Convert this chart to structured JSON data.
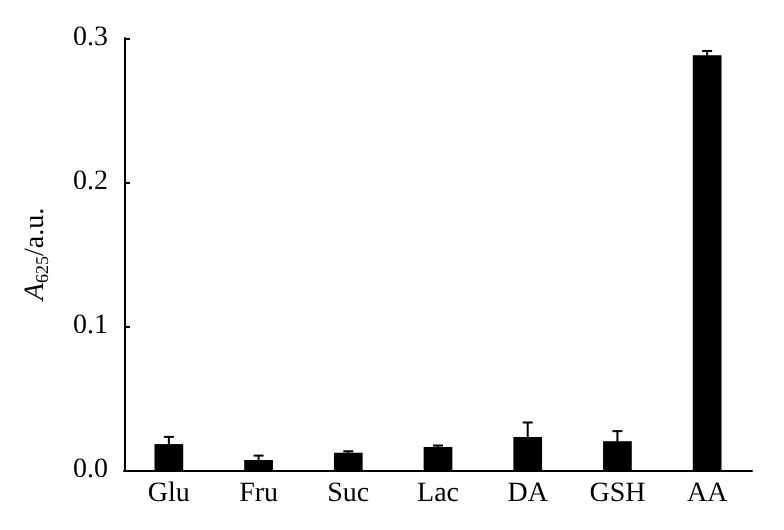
{
  "chart_data": {
    "type": "bar",
    "ylabel": "A$_{625}$/a.u.",
    "categories": [
      "Glu",
      "Fru",
      "Suc",
      "Lac",
      "DA",
      "GSH",
      "AA"
    ],
    "values": [
      0.018,
      0.007,
      0.012,
      0.016,
      0.023,
      0.02,
      0.288
    ],
    "errors": [
      0.005,
      0.003,
      0.001,
      0.001,
      0.01,
      0.007,
      0.003
    ],
    "color": "#000000",
    "ylim": [
      0,
      0.3
    ],
    "yticks": [
      {
        "value": 0,
        "label": "0.0"
      },
      {
        "value": 0.1,
        "label": "0.1"
      },
      {
        "value": 0.2,
        "label": "0.2"
      },
      {
        "value": 0.3,
        "label": "0.3"
      }
    ],
    "grid": false
  }
}
